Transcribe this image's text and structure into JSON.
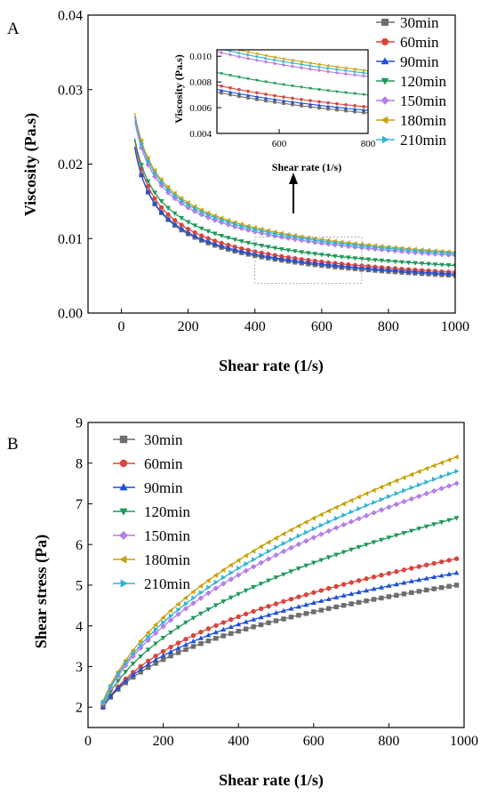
{
  "chart_data": [
    {
      "panel_label": "A",
      "type": "line",
      "xlabel": "Shear rate (1/s)",
      "ylabel": "Viscosity (Pa.s)",
      "xlim": [
        -100,
        1000
      ],
      "ylim": [
        0.0,
        0.04
      ],
      "x_ticks": [
        "0",
        "200",
        "400",
        "600",
        "800",
        "1000"
      ],
      "y_ticks": [
        "0.00",
        "0.01",
        "0.02",
        "0.03",
        "0.04"
      ],
      "grid": false,
      "legend_position": "right",
      "model": "power-law, viscosity = K * rate^(n-1), x from 40 to 1000",
      "series": [
        {
          "name": "30min",
          "color": "#6d6d6d",
          "marker": "square",
          "K": 0.1234,
          "n": 0.537
        },
        {
          "name": "60min",
          "color": "#d9453d",
          "marker": "circle",
          "K": 0.1217,
          "n": 0.551
        },
        {
          "name": "90min",
          "color": "#1f4fd8",
          "marker": "triangle-up",
          "K": 0.1164,
          "n": 0.551
        },
        {
          "name": "120min",
          "color": "#1f9a5a",
          "marker": "triangle-down",
          "K": 0.104,
          "n": 0.596
        },
        {
          "name": "150min",
          "color": "#b77ee8",
          "marker": "diamond",
          "K": 0.1026,
          "n": 0.626
        },
        {
          "name": "180min",
          "color": "#c9a20c",
          "marker": "triangle-left",
          "K": 0.1052,
          "n": 0.63
        },
        {
          "name": "210min",
          "color": "#33b3d6",
          "marker": "triangle-right",
          "K": 0.1042,
          "n": 0.628
        }
      ],
      "inset": {
        "xlabel": "Shear rate (1/s)",
        "ylabel": "Viscosity (Pa.s)",
        "xlim": [
          460,
          800
        ],
        "ylim": [
          0.004,
          0.0105
        ],
        "x_ticks": [
          "600",
          "800"
        ],
        "y_ticks": [
          "0.004",
          "0.006",
          "0.008",
          "0.010"
        ]
      },
      "zoom_box": {
        "x": [
          400,
          720
        ],
        "y": [
          0.004,
          0.0102
        ]
      }
    },
    {
      "panel_label": "B",
      "type": "line",
      "xlabel": "Shear rate (1/s)",
      "ylabel": "Shear stress (Pa)",
      "xlim": [
        0,
        1000
      ],
      "ylim": [
        1.5,
        9
      ],
      "x_ticks": [
        "0",
        "200",
        "400",
        "600",
        "800",
        "1000"
      ],
      "y_ticks": [
        "2",
        "3",
        "4",
        "5",
        "6",
        "7",
        "8",
        "9"
      ],
      "grid": false,
      "legend_position": "top-left",
      "model": "shear stress = viscosity * rate, x from 40 to 980",
      "series": [
        {
          "name": "30min",
          "color": "#6d6d6d",
          "marker": "square",
          "y_start": 2.0,
          "y_end": 5.0
        },
        {
          "name": "60min",
          "color": "#d9453d",
          "marker": "circle",
          "y_start": 2.0,
          "y_end": 5.65
        },
        {
          "name": "90min",
          "color": "#1f4fd8",
          "marker": "triangle-up",
          "y_start": 2.0,
          "y_end": 5.3
        },
        {
          "name": "120min",
          "color": "#1f9a5a",
          "marker": "triangle-down",
          "y_start": 2.05,
          "y_end": 6.65
        },
        {
          "name": "150min",
          "color": "#b77ee8",
          "marker": "diamond",
          "y_start": 2.1,
          "y_end": 7.5
        },
        {
          "name": "180min",
          "color": "#c9a20c",
          "marker": "triangle-left",
          "y_start": 2.15,
          "y_end": 8.15
        },
        {
          "name": "210min",
          "color": "#33b3d6",
          "marker": "triangle-right",
          "y_start": 2.12,
          "y_end": 7.8
        }
      ]
    }
  ]
}
